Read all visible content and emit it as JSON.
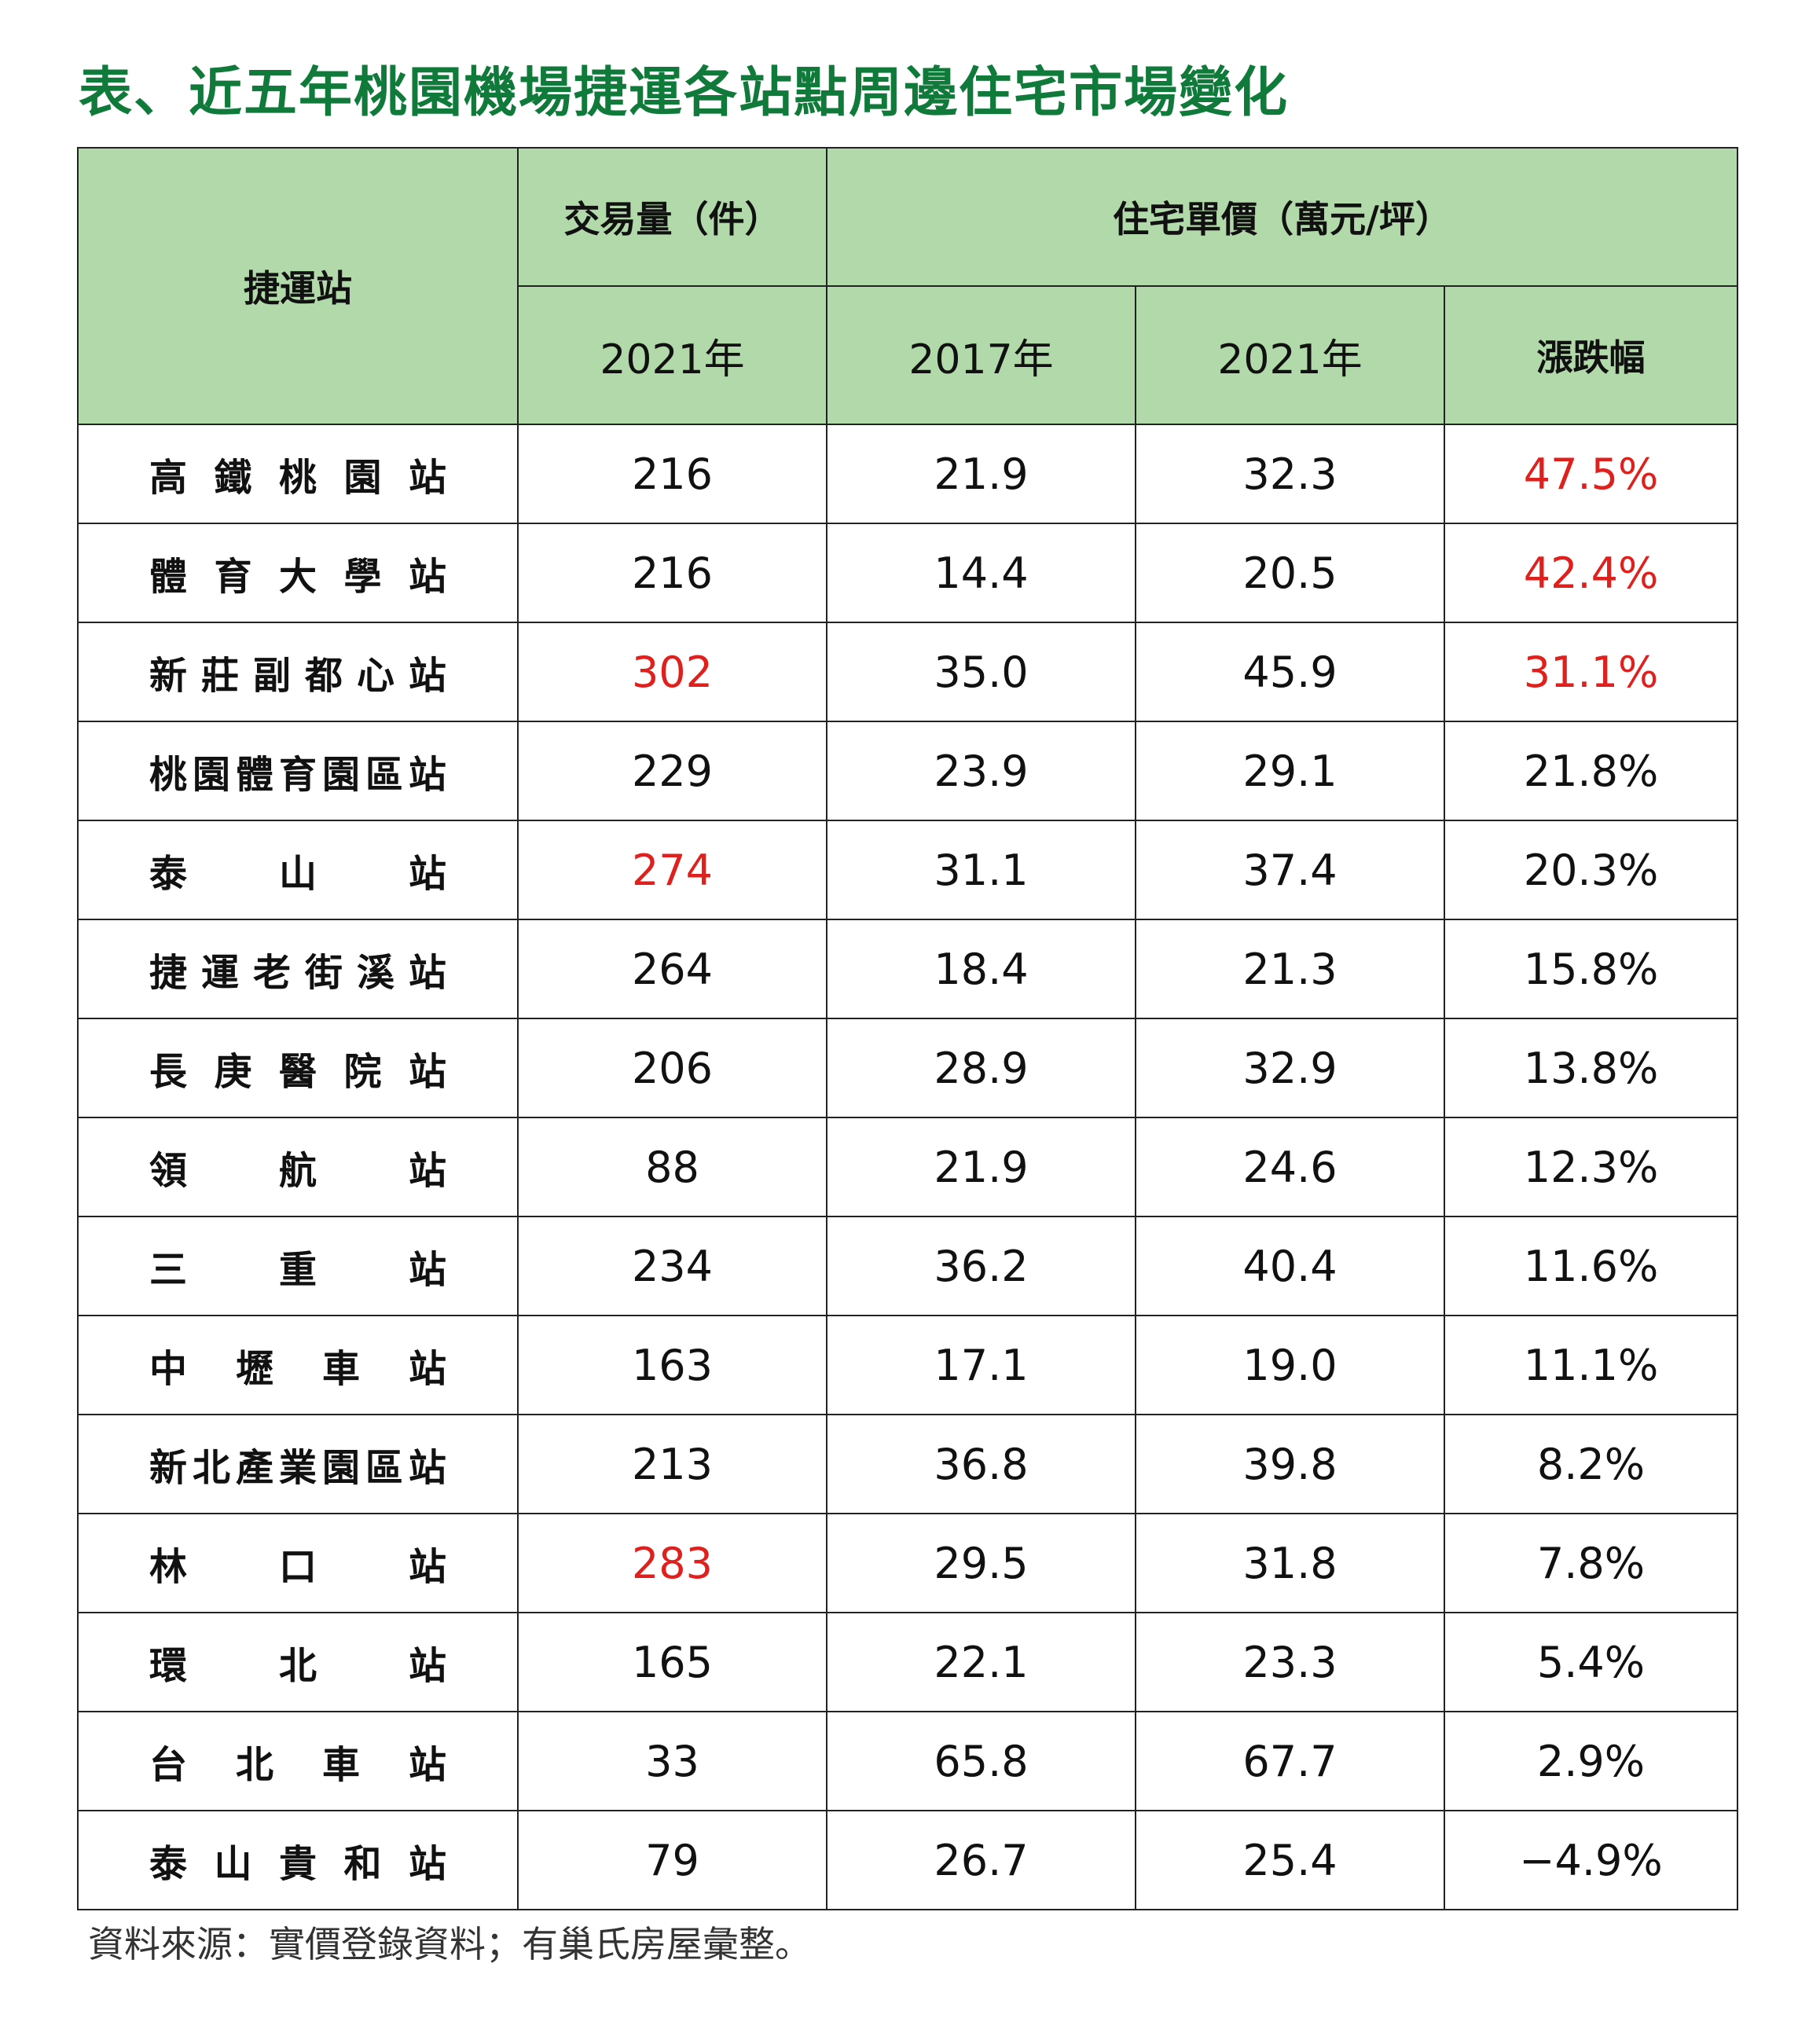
{
  "title": "表、近五年桃園機場捷運各站點周邊住宅市場變化",
  "header": {
    "station": "捷運站",
    "volume_group": "交易量（件）",
    "price_group": "住宅單價（萬元/坪）",
    "volume_year": "2021年",
    "price_year_1": "2017年",
    "price_year_2": "2021年",
    "change": "漲跌幅"
  },
  "colors": {
    "header_bg": "#b2d9aa",
    "title": "#0f7a3a",
    "highlight": "#e0201d"
  },
  "rows": [
    {
      "station": "高鐵桃園站",
      "volume": "216",
      "p2017": "21.9",
      "p2021": "32.3",
      "change": "47.5%",
      "volume_red": false,
      "change_red": true
    },
    {
      "station": "體育大學站",
      "volume": "216",
      "p2017": "14.4",
      "p2021": "20.5",
      "change": "42.4%",
      "volume_red": false,
      "change_red": true
    },
    {
      "station": "新莊副都心站",
      "volume": "302",
      "p2017": "35.0",
      "p2021": "45.9",
      "change": "31.1%",
      "volume_red": true,
      "change_red": true
    },
    {
      "station": "桃園體育園區站",
      "volume": "229",
      "p2017": "23.9",
      "p2021": "29.1",
      "change": "21.8%",
      "volume_red": false,
      "change_red": false
    },
    {
      "station": "泰山站",
      "volume": "274",
      "p2017": "31.1",
      "p2021": "37.4",
      "change": "20.3%",
      "volume_red": true,
      "change_red": false
    },
    {
      "station": "捷運老街溪站",
      "volume": "264",
      "p2017": "18.4",
      "p2021": "21.3",
      "change": "15.8%",
      "volume_red": false,
      "change_red": false
    },
    {
      "station": "長庚醫院站",
      "volume": "206",
      "p2017": "28.9",
      "p2021": "32.9",
      "change": "13.8%",
      "volume_red": false,
      "change_red": false
    },
    {
      "station": "領航站",
      "volume": "88",
      "p2017": "21.9",
      "p2021": "24.6",
      "change": "12.3%",
      "volume_red": false,
      "change_red": false
    },
    {
      "station": "三重站",
      "volume": "234",
      "p2017": "36.2",
      "p2021": "40.4",
      "change": "11.6%",
      "volume_red": false,
      "change_red": false
    },
    {
      "station": "中壢車站",
      "volume": "163",
      "p2017": "17.1",
      "p2021": "19.0",
      "change": "11.1%",
      "volume_red": false,
      "change_red": false
    },
    {
      "station": "新北產業園區站",
      "volume": "213",
      "p2017": "36.8",
      "p2021": "39.8",
      "change": "8.2%",
      "volume_red": false,
      "change_red": false
    },
    {
      "station": "林口站",
      "volume": "283",
      "p2017": "29.5",
      "p2021": "31.8",
      "change": "7.8%",
      "volume_red": true,
      "change_red": false
    },
    {
      "station": "環北站",
      "volume": "165",
      "p2017": "22.1",
      "p2021": "23.3",
      "change": "5.4%",
      "volume_red": false,
      "change_red": false
    },
    {
      "station": "台北車站",
      "volume": "33",
      "p2017": "65.8",
      "p2021": "67.7",
      "change": "2.9%",
      "volume_red": false,
      "change_red": false
    },
    {
      "station": "泰山貴和站",
      "volume": "79",
      "p2017": "26.7",
      "p2021": "25.4",
      "change": "−4.9%",
      "volume_red": false,
      "change_red": false
    }
  ],
  "source": "資料來源：實價登錄資料；有巢氏房屋彙整。"
}
